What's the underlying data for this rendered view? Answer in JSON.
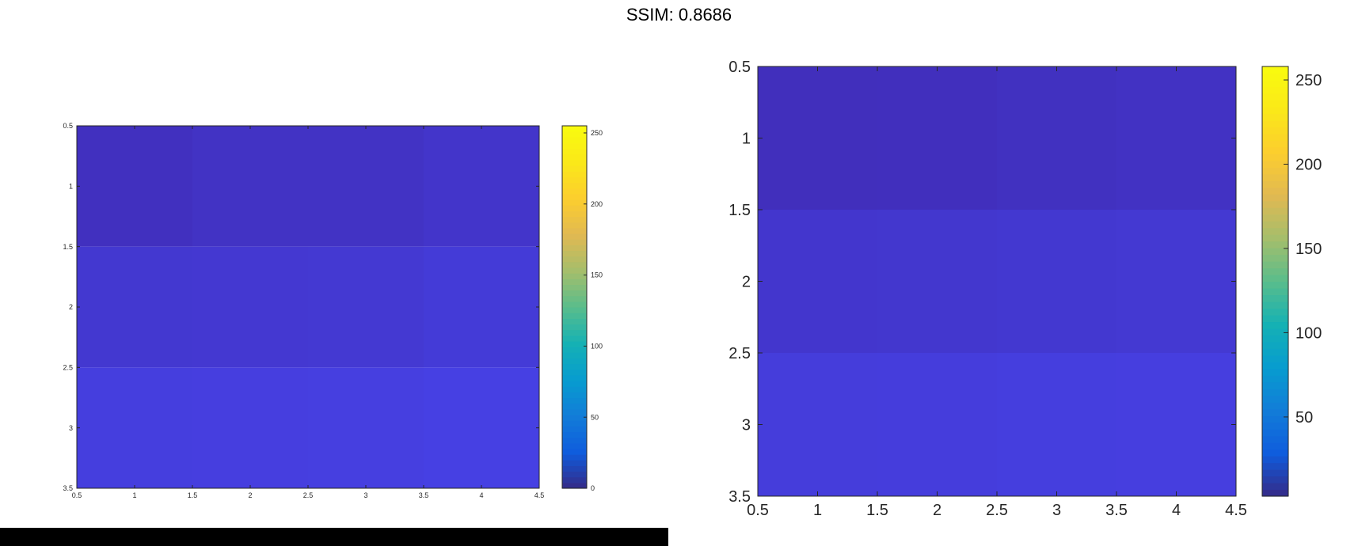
{
  "figure": {
    "title": "SSIM: 0.8686"
  },
  "chart_data": [
    {
      "type": "heatmap",
      "title": "",
      "xlabel": "",
      "ylabel": "",
      "xlim": [
        0.5,
        4.5
      ],
      "ylim": [
        0.5,
        3.5
      ],
      "y_reversed": true,
      "x_ticks": [
        0.5,
        1,
        1.5,
        2,
        2.5,
        3,
        3.5,
        4,
        4.5
      ],
      "y_ticks": [
        0.5,
        1,
        1.5,
        2,
        2.5,
        3,
        3.5
      ],
      "values": [
        [
          16,
          20,
          20,
          24
        ],
        [
          28,
          29,
          30,
          33
        ],
        [
          38,
          39,
          40,
          42
        ]
      ],
      "colorbar": {
        "range": [
          0,
          255
        ],
        "ticks": [
          0,
          50,
          100,
          150,
          200,
          250
        ]
      },
      "colormap": "parula"
    },
    {
      "type": "heatmap",
      "title": "",
      "xlabel": "",
      "ylabel": "",
      "xlim": [
        0.5,
        4.5
      ],
      "ylim": [
        0.5,
        3.5
      ],
      "y_reversed": true,
      "x_ticks": [
        0.5,
        1,
        1.5,
        2,
        2.5,
        3,
        3.5,
        4,
        4.5
      ],
      "y_ticks": [
        0.5,
        1,
        1.5,
        2,
        2.5,
        3,
        3.5
      ],
      "values": [
        [
          17,
          18,
          20,
          22
        ],
        [
          29,
          30,
          31,
          33
        ],
        [
          39,
          40,
          41,
          42
        ]
      ],
      "colorbar": {
        "range": [
          3,
          258
        ],
        "ticks": [
          50,
          100,
          150,
          200,
          250
        ]
      },
      "colormap": "parula"
    }
  ]
}
